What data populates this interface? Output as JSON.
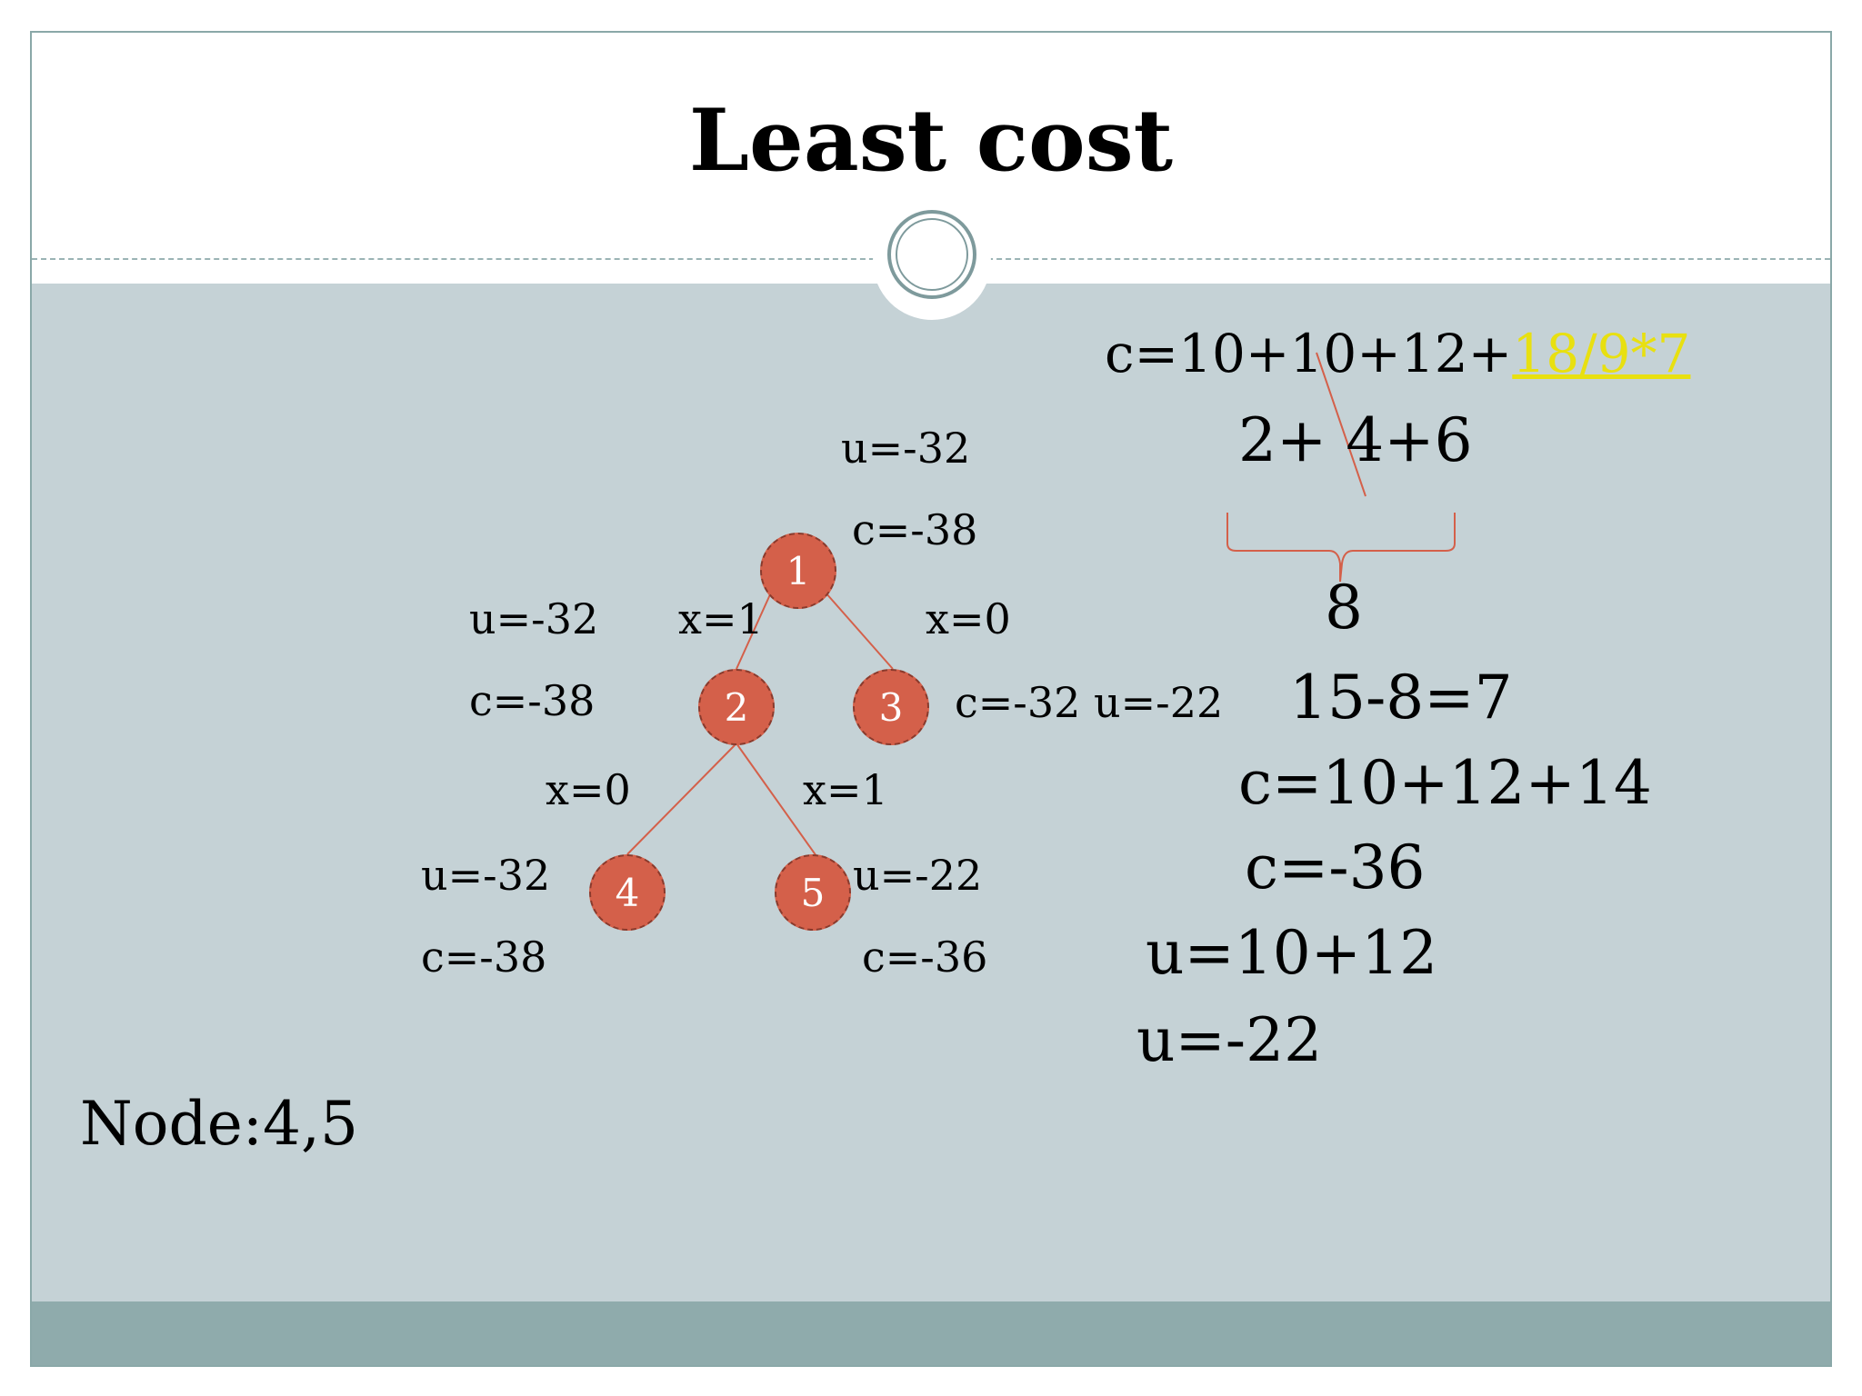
{
  "title": "Least cost",
  "tree": {
    "nodes": [
      {
        "id": "1"
      },
      {
        "id": "2"
      },
      {
        "id": "3"
      },
      {
        "id": "4"
      },
      {
        "id": "5"
      }
    ],
    "root_u": "u=-32",
    "root_c": "c=-38",
    "edge_1_2": "x=1",
    "edge_1_3": "x=0",
    "node2_u": "u=-32",
    "node2_c": "c=-38",
    "node3_cu": "c=-32 u=-22",
    "edge_2_4": "x=0",
    "edge_2_5": "x=1",
    "node4_u": "u=-32",
    "node4_c": "c=-38",
    "node5_u": "u=-22",
    "node5_c": "c=-36"
  },
  "calc": {
    "line1_prefix": "c=10+10+12+",
    "line1_highlight": "18/9*7",
    "line2": "2+ 4+6",
    "line3": "8",
    "line4": "15-8=7",
    "line5": "c=10+12+14",
    "line6": "c=-36",
    "line7": "u=10+12",
    "line8": "u=-22"
  },
  "node_summary": "Node:4,5",
  "colors": {
    "node_fill": "#d4604a",
    "edge": "#d4604a",
    "highlight": "#e8e010",
    "content_bg": "#c5d2d6",
    "footer": "#8fabac"
  }
}
